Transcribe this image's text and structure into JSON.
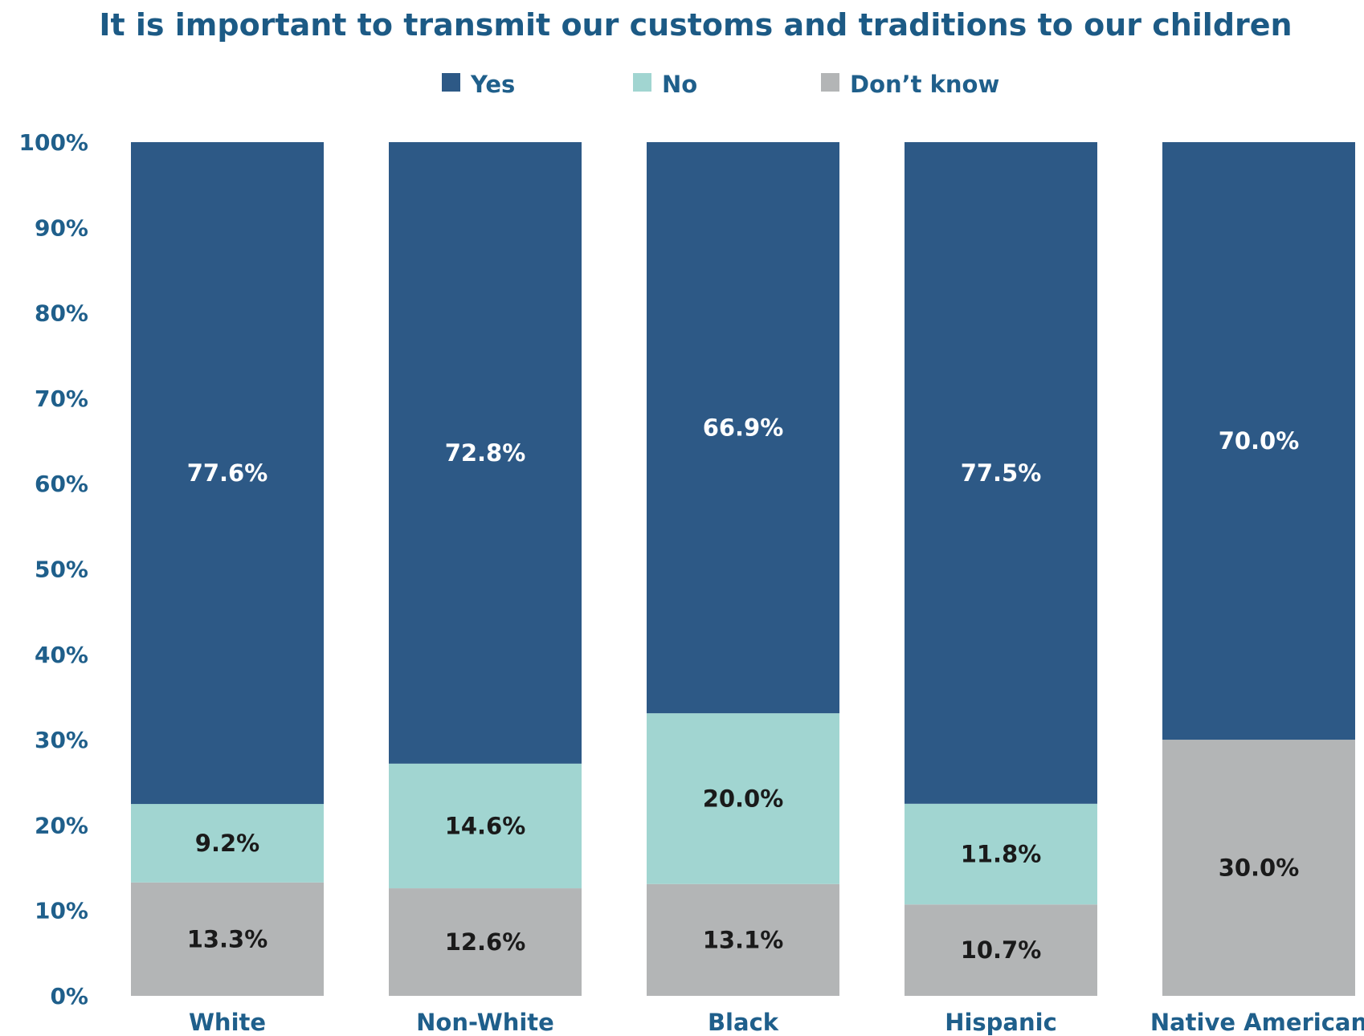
{
  "chart_data": {
    "type": "bar",
    "stacked": true,
    "title": "It is important to transmit our customs and traditions to our children",
    "categories": [
      "White",
      "Non-White",
      "Black",
      "Hispanic",
      "Native American"
    ],
    "series": [
      {
        "name": "Don’t know",
        "color": "#b3b5b6",
        "label_color": "#1a1a1a",
        "values": [
          13.3,
          12.6,
          13.1,
          10.7,
          30.0
        ]
      },
      {
        "name": "No",
        "color": "#a1d5d1",
        "label_color": "#1a1a1a",
        "values": [
          9.2,
          14.6,
          20.0,
          11.8,
          null
        ]
      },
      {
        "name": "Yes",
        "color": "#2d5986",
        "label_color": "#ffffff",
        "values": [
          77.6,
          72.8,
          66.9,
          77.5,
          70.0
        ]
      }
    ],
    "legend_order": [
      "Yes",
      "No",
      "Don’t know"
    ],
    "legend_position": "top",
    "ylim": [
      0,
      100
    ],
    "y_ticks": [
      "0%",
      "10%",
      "20%",
      "30%",
      "40%",
      "50%",
      "60%",
      "70%",
      "80%",
      "90%",
      "100%"
    ],
    "value_suffix": "%",
    "grid": false,
    "colors": {
      "text": "#1f5f8b",
      "title": "#1c5a85"
    }
  }
}
